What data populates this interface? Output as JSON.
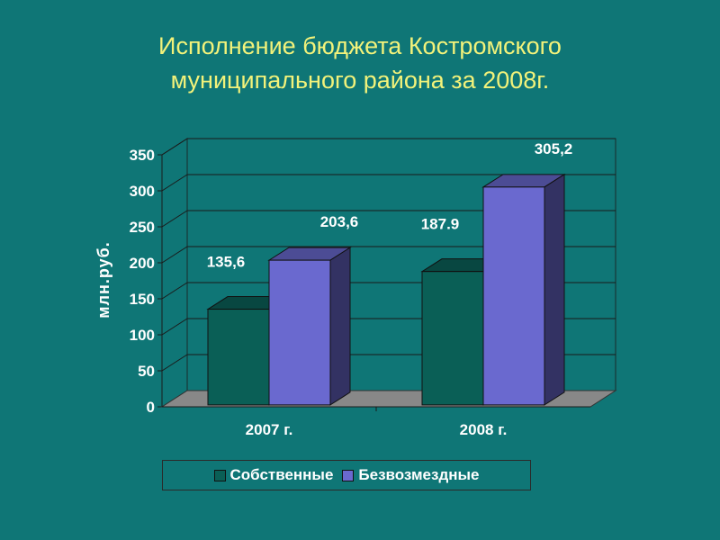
{
  "title": {
    "line1": "Исполнение бюджета Костромского",
    "line2": "муниципального района за 2008г."
  },
  "colors": {
    "background": "#0f7676",
    "title": "#f2f27a",
    "series1": "#0a5f56",
    "series2": "#6a69cf"
  },
  "chart_data": {
    "type": "bar",
    "ylabel": "млн.руб.",
    "xlabel": "",
    "ylim": [
      0,
      350
    ],
    "yticks": [
      "0",
      "50",
      "100",
      "150",
      "200",
      "250",
      "300",
      "350"
    ],
    "grid": true,
    "legend_position": "bottom",
    "categories": [
      "2007 г.",
      "2008 г."
    ],
    "series": [
      {
        "name": "Собственные",
        "values": [
          135.6,
          187.9
        ],
        "labels": [
          "135,6",
          "187.9"
        ]
      },
      {
        "name": "Безвозмездные",
        "values": [
          203.6,
          305.2
        ],
        "labels": [
          "203,6",
          "305,2"
        ]
      }
    ]
  }
}
